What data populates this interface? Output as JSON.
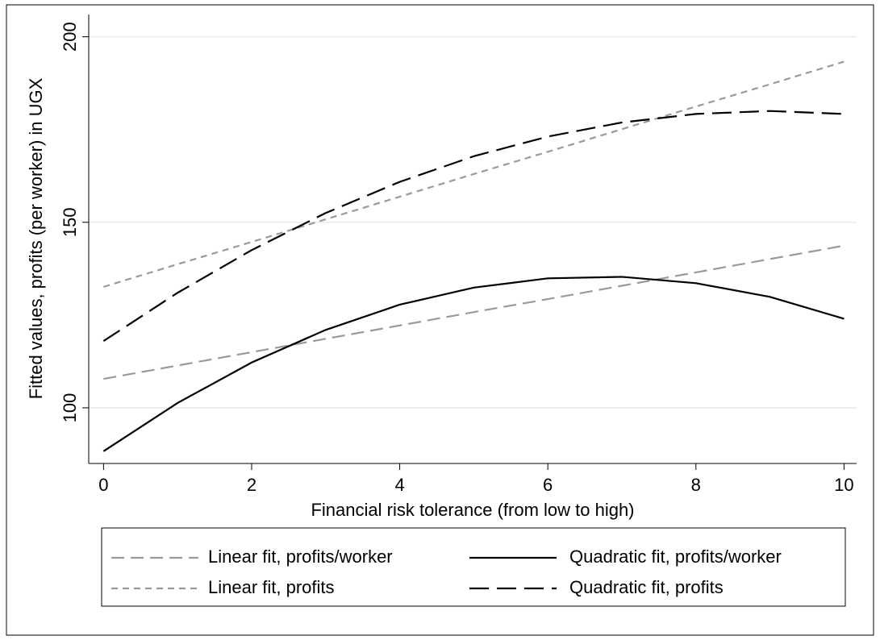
{
  "chart_data": {
    "type": "line",
    "xlabel": "Financial risk tolerance (from low to high)",
    "ylabel": "Fitted values, profits (per worker) in UGX",
    "x": [
      0,
      1,
      2,
      3,
      4,
      5,
      6,
      7,
      8,
      9,
      10
    ],
    "series": [
      {
        "name": "Linear fit, profits/worker",
        "color": "#9a9a9a",
        "dash": "16 8",
        "values": [
          107.8,
          111.4,
          115.0,
          118.6,
          122.2,
          125.8,
          129.3,
          132.9,
          136.5,
          140.1,
          143.7
        ]
      },
      {
        "name": "Quadratic fit, profits/worker",
        "color": "#000000",
        "dash": "none",
        "values": [
          88.3,
          101.3,
          112.2,
          121.0,
          127.8,
          132.4,
          134.9,
          135.3,
          133.6,
          129.9,
          124.0
        ]
      },
      {
        "name": "Linear fit, profits",
        "color": "#9a9a9a",
        "dash": "8 6",
        "values": [
          132.6,
          138.7,
          144.7,
          150.8,
          156.9,
          163.0,
          169.0,
          175.1,
          181.2,
          187.2,
          193.3
        ]
      },
      {
        "name": "Quadratic fit, profits",
        "color": "#000000",
        "dash": "24 10",
        "values": [
          118.0,
          131.0,
          142.5,
          152.5,
          160.9,
          167.8,
          173.1,
          176.9,
          179.2,
          180.0,
          179.2
        ]
      }
    ],
    "xlim": [
      -0.2,
      10.17
    ],
    "ylim": [
      85,
      206
    ],
    "xticks": [
      0,
      2,
      4,
      6,
      8,
      10
    ],
    "yticks": [
      100,
      150,
      200
    ],
    "grid": true
  }
}
